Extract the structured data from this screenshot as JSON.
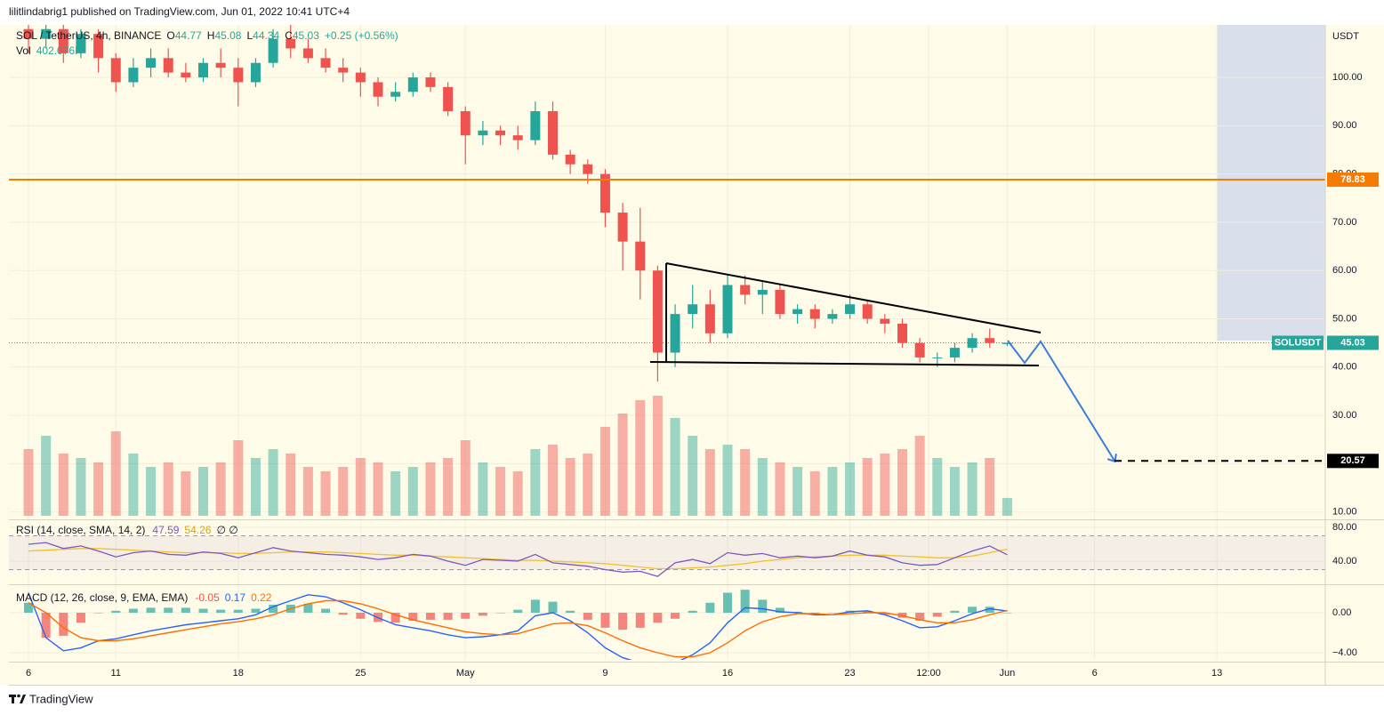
{
  "header": {
    "publisher": "lilitlindabrig1 published on TradingView.com, Jun 01, 2022 10:41 UTC+4",
    "symbol": "SOL / TetherUS, 4h, BINANCE",
    "ohlc": [
      {
        "label": "O",
        "value": 44.77
      },
      {
        "label": "H",
        "value": 45.08
      },
      {
        "label": "L",
        "value": 44.34
      },
      {
        "label": "C",
        "value": 45.03
      }
    ],
    "change": "+0.25 (+0.56%)",
    "volume_label": "Vol",
    "volume_value": "402.076K"
  },
  "chart_data": [
    {
      "type": "candlestick",
      "unit": "USDT",
      "x": [
        0,
        1,
        2,
        3,
        4,
        5,
        6,
        7,
        8,
        9,
        10,
        11,
        12,
        13,
        14,
        15,
        16,
        17,
        18,
        19,
        20,
        21,
        22,
        23,
        24,
        25,
        26,
        27,
        28,
        29,
        30,
        31,
        32,
        33,
        34,
        35,
        36,
        37,
        38,
        39,
        40,
        41,
        42,
        43,
        44,
        45,
        46,
        47,
        48,
        49,
        50,
        51,
        52,
        53,
        54,
        55,
        56
      ],
      "open": [
        110,
        108,
        110,
        105,
        109,
        104,
        99,
        102,
        104,
        101,
        100,
        103,
        102,
        99,
        103,
        108,
        106,
        104,
        102,
        101,
        99,
        96,
        97,
        100,
        98,
        93,
        88,
        89,
        88,
        87,
        93,
        84,
        82,
        80,
        72,
        66,
        60,
        43,
        51,
        53,
        47,
        57,
        55,
        56,
        51,
        52,
        50,
        51,
        53,
        50,
        49,
        45,
        42,
        42,
        44,
        46,
        44.77
      ],
      "high": [
        112,
        112,
        111,
        110,
        110,
        105,
        104,
        106,
        106,
        103,
        104,
        106,
        104,
        104,
        110,
        111,
        108,
        106,
        104,
        102,
        100,
        99,
        101,
        101,
        99,
        94,
        91,
        90,
        90,
        95,
        95,
        85,
        83,
        81,
        74,
        73,
        61,
        53,
        57,
        56,
        59,
        59,
        58,
        57,
        53,
        53,
        52,
        55,
        54,
        51,
        50,
        46,
        43,
        45,
        47,
        48,
        45.08
      ],
      "low": [
        105,
        106,
        103,
        104,
        101,
        97,
        98,
        100,
        100,
        99,
        99,
        100,
        94,
        98,
        102,
        104,
        103,
        101,
        99,
        96,
        94,
        95,
        96,
        97,
        92,
        82,
        86,
        86,
        85,
        86,
        83,
        80,
        78,
        69,
        60,
        54,
        37,
        40,
        48,
        45,
        46,
        53,
        51,
        50,
        49,
        48,
        49,
        50,
        49,
        47,
        44,
        41,
        40,
        41,
        43,
        44,
        44.34
      ],
      "close": [
        108,
        110,
        105,
        109,
        104,
        99,
        102,
        104,
        101,
        100,
        103,
        102,
        99,
        103,
        108,
        106,
        104,
        102,
        101,
        99,
        96,
        97,
        100,
        98,
        93,
        88,
        89,
        88,
        87,
        93,
        84,
        82,
        80,
        72,
        66,
        60,
        43,
        51,
        53,
        47,
        57,
        55,
        56,
        51,
        52,
        50,
        51,
        53,
        50,
        49,
        45,
        42,
        42,
        44,
        46,
        45,
        45.03
      ],
      "volume": [
        1500,
        1800,
        1400,
        1300,
        1200,
        1900,
        1400,
        1100,
        1200,
        1000,
        1100,
        1200,
        1700,
        1300,
        1500,
        1400,
        1100,
        1000,
        1100,
        1300,
        1200,
        1000,
        1100,
        1200,
        1300,
        1700,
        1200,
        1100,
        1000,
        1500,
        1600,
        1300,
        1400,
        2000,
        2300,
        2600,
        2700,
        2200,
        1800,
        1500,
        1600,
        1500,
        1300,
        1200,
        1100,
        1000,
        1100,
        1200,
        1300,
        1400,
        1500,
        1800,
        1300,
        1100,
        1200,
        1300,
        402
      ],
      "up_color": "#26a69a",
      "down_color": "#ef5350",
      "xlim": [
        -1.12,
        74.2
      ],
      "xticks": [
        {
          "value": 0,
          "label": "6"
        },
        {
          "value": 5,
          "label": "11"
        },
        {
          "value": 12,
          "label": "18"
        },
        {
          "value": 19,
          "label": "25"
        },
        {
          "value": 25,
          "label": "May"
        },
        {
          "value": 33,
          "label": "9"
        },
        {
          "value": 40,
          "label": "16"
        },
        {
          "value": 47,
          "label": "23"
        },
        {
          "value": 51.5,
          "label": "12:00"
        },
        {
          "value": 56,
          "label": "Jun"
        },
        {
          "value": 61,
          "label": "6"
        },
        {
          "value": 68,
          "label": "13"
        }
      ],
      "ylim": [
        8.84,
        110.87
      ],
      "yticks": [
        {
          "value": 10,
          "label": "10.00"
        },
        {
          "value": 20,
          "label": "20.00"
        },
        {
          "value": 30,
          "label": "30.00"
        },
        {
          "value": 40,
          "label": "40.00"
        },
        {
          "value": 50,
          "label": "50.00"
        },
        {
          "value": 60,
          "label": "60.00"
        },
        {
          "value": 70,
          "label": "70.00"
        },
        {
          "value": 80,
          "label": "80.00"
        },
        {
          "value": 90,
          "label": "90.00"
        },
        {
          "value": 100,
          "label": "100.00"
        }
      ],
      "grid": true,
      "levels": [
        {
          "value": 78.83,
          "color": "#f57c00",
          "style": "solid"
        },
        {
          "value": 20.57,
          "color": "#000000",
          "style": "dashed"
        }
      ],
      "last_price": {
        "name": "SOLUSDT",
        "value": 45.03,
        "color": "#26a69a"
      }
    },
    {
      "type": "line",
      "title": "RSI (14, close, SMA, 14, 2)",
      "legend_extra": "∅  ∅",
      "series": [
        {
          "name": "RSI",
          "color": "#7e57c2",
          "values": [
            60,
            62,
            55,
            58,
            52,
            45,
            50,
            52,
            48,
            47,
            51,
            49,
            44,
            50,
            56,
            52,
            50,
            48,
            47,
            45,
            42,
            44,
            48,
            46,
            40,
            35,
            42,
            41,
            40,
            48,
            38,
            36,
            34,
            30,
            27,
            28,
            22,
            38,
            42,
            37,
            50,
            47,
            49,
            44,
            46,
            44,
            46,
            52,
            47,
            45,
            38,
            35,
            36,
            44,
            52,
            58,
            47.59
          ]
        },
        {
          "name": "SMA",
          "color": "#f2c12e",
          "values": [
            52,
            53,
            54,
            55,
            55,
            54,
            53,
            52,
            51,
            50,
            50,
            50,
            49,
            49,
            50,
            51,
            51,
            51,
            50,
            49,
            48,
            47,
            47,
            46,
            45,
            44,
            43,
            42,
            41,
            41,
            40,
            39,
            38,
            37,
            35,
            33,
            31,
            31,
            32,
            33,
            35,
            37,
            40,
            42,
            44,
            45,
            46,
            47,
            47,
            47,
            46,
            45,
            44,
            44,
            46,
            50,
            54.26
          ]
        }
      ],
      "bands": [
        70,
        30
      ],
      "ylim": [
        14.7,
        85.3
      ],
      "yticks": [
        {
          "value": 80,
          "label": "80.00"
        },
        {
          "value": 40,
          "label": "40.00"
        }
      ]
    },
    {
      "type": "macd",
      "title": "MACD (12, 26, close, 9, EMA, EMA)",
      "histogram": {
        "name": "Histogram",
        "up_color": "#26a69a",
        "down_color": "#ef5350",
        "values": [
          1.0,
          -2.5,
          -2.3,
          -1.0,
          0,
          0.2,
          0.4,
          0.5,
          0.5,
          0.5,
          0.4,
          0.3,
          0.3,
          0.4,
          0.8,
          0.8,
          0.9,
          0.4,
          -0.2,
          -0.6,
          -0.9,
          -1.0,
          -0.8,
          -0.7,
          -0.7,
          -0.6,
          -0.3,
          0,
          0.3,
          1.3,
          1.1,
          0.2,
          -0.7,
          -1.5,
          -1.7,
          -1.5,
          -1.0,
          -0.6,
          0.2,
          1.0,
          2.0,
          2.3,
          1.3,
          0.5,
          0.1,
          -0.1,
          0,
          0.2,
          0.2,
          -0.2,
          -0.5,
          -0.8,
          -0.4,
          0.2,
          0.6,
          0.6,
          -0.05
        ]
      },
      "series": [
        {
          "name": "MACD",
          "color": "#2962ff",
          "values": [
            2.0,
            -2.5,
            -3.8,
            -3.5,
            -2.8,
            -2.6,
            -2.2,
            -1.8,
            -1.5,
            -1.2,
            -1.0,
            -0.8,
            -0.6,
            -0.2,
            0.6,
            1.2,
            1.8,
            1.6,
            1.0,
            0.3,
            -0.5,
            -1.2,
            -1.5,
            -1.8,
            -2.2,
            -2.5,
            -2.4,
            -2.2,
            -1.8,
            -0.3,
            0.0,
            -0.8,
            -2.0,
            -3.5,
            -4.5,
            -5,
            -5,
            -5,
            -4.2,
            -3.0,
            -1.0,
            0.5,
            0.4,
            0.1,
            0.0,
            -0.2,
            -0.2,
            0.1,
            0.2,
            -0.2,
            -0.8,
            -1.5,
            -1.4,
            -0.8,
            -0.1,
            0.4,
            0.17
          ]
        },
        {
          "name": "Signal",
          "color": "#ff6d00",
          "values": [
            1.0,
            0.0,
            -1.5,
            -2.5,
            -2.8,
            -2.8,
            -2.6,
            -2.3,
            -2.0,
            -1.7,
            -1.4,
            -1.1,
            -0.9,
            -0.6,
            -0.2,
            0.4,
            0.9,
            1.2,
            1.2,
            0.9,
            0.4,
            -0.2,
            -0.7,
            -1.1,
            -1.5,
            -1.9,
            -2.1,
            -2.2,
            -2.1,
            -1.6,
            -1.1,
            -1.0,
            -1.3,
            -2.0,
            -2.8,
            -3.5,
            -4.0,
            -4.4,
            -4.4,
            -4.0,
            -3.0,
            -1.8,
            -0.9,
            -0.4,
            -0.1,
            -0.1,
            -0.2,
            -0.1,
            0.0,
            0.0,
            -0.3,
            -0.7,
            -1.0,
            -1.0,
            -0.7,
            -0.2,
            0.22
          ]
        }
      ],
      "ylim": [
        -4.71,
        2.58
      ],
      "yticks": [
        {
          "value": 0,
          "label": "0.00"
        },
        {
          "value": -4,
          "label": "−4.00"
        }
      ]
    }
  ],
  "footer": {
    "brand": "TradingView"
  }
}
